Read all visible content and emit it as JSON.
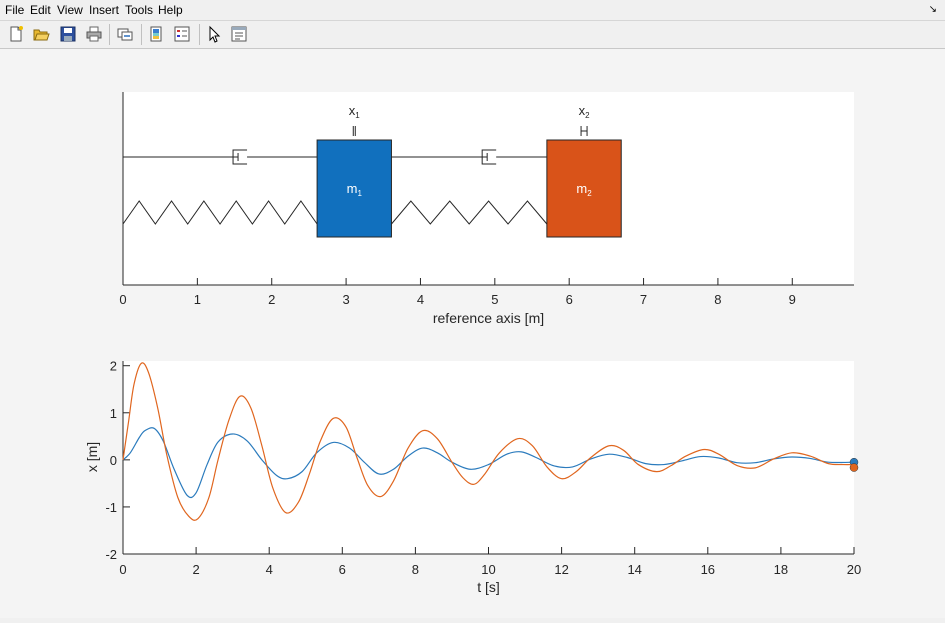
{
  "menu": [
    "File",
    "Edit",
    "View",
    "Insert",
    "Tools",
    "Help"
  ],
  "toolbar_icons": [
    "new-file-icon",
    "open-folder-icon",
    "save-icon",
    "print-icon",
    "link-plot-icon",
    "colorbar-icon",
    "legend-icon",
    "pointer-icon",
    "property-editor-icon"
  ],
  "colors": {
    "m1": "#1170be",
    "m2": "#d95319",
    "series1": "#2b7bbd",
    "series2": "#e0661f"
  },
  "top_plot": {
    "xlabel": "reference axis [m]",
    "xticks": [
      "0",
      "1",
      "2",
      "3",
      "4",
      "5",
      "6",
      "7",
      "8",
      "9"
    ],
    "xlim": [
      0,
      9.83
    ],
    "mass1": {
      "label": "m",
      "sub": "1",
      "left": 2.61,
      "right": 3.61,
      "marker_label": "x",
      "marker_sub": "1"
    },
    "mass2": {
      "label": "m",
      "sub": "2",
      "left": 5.7,
      "right": 6.7,
      "marker_label": "x",
      "marker_sub": "2"
    }
  },
  "chart_data": {
    "type": "line",
    "xlabel": "t [s]",
    "ylabel": "x [m]",
    "xlim": [
      0,
      20
    ],
    "ylim": [
      -2,
      2.1
    ],
    "xticks": [
      "0",
      "2",
      "4",
      "6",
      "8",
      "10",
      "12",
      "14",
      "16",
      "18",
      "20"
    ],
    "yticks": [
      "2",
      "1",
      "0",
      "-1",
      "-2"
    ],
    "series": [
      {
        "color": "#2b7bbd",
        "points": [
          [
            0,
            0
          ],
          [
            0.2,
            0.15
          ],
          [
            0.45,
            0.48
          ],
          [
            0.6,
            0.62
          ],
          [
            0.85,
            0.67
          ],
          [
            1.1,
            0.4
          ],
          [
            1.4,
            -0.2
          ],
          [
            1.75,
            -0.75
          ],
          [
            2.0,
            -0.7
          ],
          [
            2.3,
            -0.1
          ],
          [
            2.6,
            0.38
          ],
          [
            3.0,
            0.55
          ],
          [
            3.4,
            0.4
          ],
          [
            3.8,
            0.0
          ],
          [
            4.2,
            -0.33
          ],
          [
            4.5,
            -0.4
          ],
          [
            4.9,
            -0.25
          ],
          [
            5.3,
            0.15
          ],
          [
            5.75,
            0.37
          ],
          [
            6.2,
            0.25
          ],
          [
            6.6,
            -0.05
          ],
          [
            7.0,
            -0.3
          ],
          [
            7.4,
            -0.2
          ],
          [
            7.8,
            0.08
          ],
          [
            8.2,
            0.25
          ],
          [
            8.6,
            0.15
          ],
          [
            9.0,
            -0.05
          ],
          [
            9.5,
            -0.2
          ],
          [
            10.0,
            -0.1
          ],
          [
            10.5,
            0.12
          ],
          [
            10.9,
            0.17
          ],
          [
            11.3,
            0.05
          ],
          [
            11.8,
            -0.13
          ],
          [
            12.3,
            -0.15
          ],
          [
            12.8,
            0.02
          ],
          [
            13.3,
            0.12
          ],
          [
            13.8,
            0.05
          ],
          [
            14.3,
            -0.08
          ],
          [
            14.8,
            -0.1
          ],
          [
            15.3,
            -0.02
          ],
          [
            15.8,
            0.07
          ],
          [
            16.3,
            0.04
          ],
          [
            16.8,
            -0.06
          ],
          [
            17.3,
            -0.06
          ],
          [
            17.8,
            0.02
          ],
          [
            18.3,
            0.06
          ],
          [
            18.8,
            0.03
          ],
          [
            19.3,
            -0.05
          ],
          [
            20.0,
            -0.05
          ]
        ]
      },
      {
        "color": "#e0661f",
        "points": [
          [
            0,
            0
          ],
          [
            0.15,
            0.8
          ],
          [
            0.3,
            1.6
          ],
          [
            0.5,
            2.05
          ],
          [
            0.7,
            1.85
          ],
          [
            0.95,
            1.1
          ],
          [
            1.2,
            0.1
          ],
          [
            1.5,
            -0.8
          ],
          [
            1.8,
            -1.2
          ],
          [
            2.05,
            -1.25
          ],
          [
            2.35,
            -0.8
          ],
          [
            2.6,
            0.0
          ],
          [
            2.9,
            0.85
          ],
          [
            3.2,
            1.35
          ],
          [
            3.5,
            1.1
          ],
          [
            3.8,
            0.3
          ],
          [
            4.1,
            -0.6
          ],
          [
            4.45,
            -1.12
          ],
          [
            4.8,
            -0.9
          ],
          [
            5.1,
            -0.3
          ],
          [
            5.4,
            0.4
          ],
          [
            5.75,
            0.88
          ],
          [
            6.1,
            0.7
          ],
          [
            6.4,
            0.05
          ],
          [
            6.7,
            -0.55
          ],
          [
            7.05,
            -0.78
          ],
          [
            7.4,
            -0.45
          ],
          [
            7.8,
            0.25
          ],
          [
            8.2,
            0.62
          ],
          [
            8.6,
            0.45
          ],
          [
            9.0,
            -0.05
          ],
          [
            9.3,
            -0.38
          ],
          [
            9.6,
            -0.52
          ],
          [
            9.9,
            -0.3
          ],
          [
            10.3,
            0.15
          ],
          [
            10.8,
            0.45
          ],
          [
            11.2,
            0.3
          ],
          [
            11.6,
            -0.15
          ],
          [
            12.0,
            -0.4
          ],
          [
            12.4,
            -0.25
          ],
          [
            12.8,
            0.05
          ],
          [
            13.3,
            0.3
          ],
          [
            13.7,
            0.2
          ],
          [
            14.1,
            -0.1
          ],
          [
            14.6,
            -0.25
          ],
          [
            15.0,
            -0.12
          ],
          [
            15.4,
            0.08
          ],
          [
            15.9,
            0.22
          ],
          [
            16.3,
            0.12
          ],
          [
            16.8,
            -0.12
          ],
          [
            17.3,
            -0.17
          ],
          [
            17.8,
            0.02
          ],
          [
            18.3,
            0.15
          ],
          [
            18.8,
            0.08
          ],
          [
            19.3,
            -0.08
          ],
          [
            19.7,
            -0.1
          ],
          [
            20.0,
            -0.1
          ]
        ]
      }
    ]
  }
}
